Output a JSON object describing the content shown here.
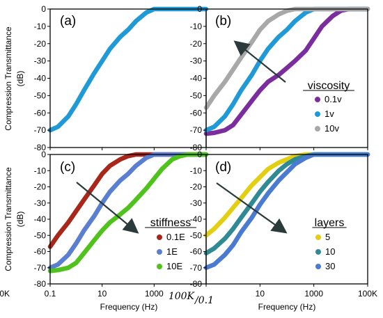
{
  "figure": {
    "y_axis_label_line1": "Compression Transmittance",
    "y_axis_label_line2": "(dB)",
    "x_axis_label": "Frequency (Hz)",
    "middle_x_tick_label": "100K",
    "middle_x_tick_suffix": "/0.1"
  },
  "chart_data": [
    {
      "type": "line",
      "panel": "(a)",
      "x_scale": "log",
      "xlim": [
        0.1,
        100000
      ],
      "ylim": [
        -80,
        0
      ],
      "xticks": [
        "0.1",
        "10",
        "1000",
        "100K"
      ],
      "yticks": [
        "0",
        "-10",
        "-20",
        "-30",
        "-40",
        "-50",
        "-60",
        "-70",
        "-80"
      ],
      "series": [
        {
          "color": "#1f9ad6",
          "x": [
            0.1,
            0.2,
            0.5,
            1,
            2,
            5,
            10,
            20,
            50,
            100,
            200,
            500,
            1000,
            2000,
            5000,
            10000
          ],
          "y": [
            -70,
            -68,
            -62,
            -55,
            -47,
            -37,
            -30,
            -23,
            -16,
            -12,
            -7,
            -2,
            0,
            0,
            0,
            0
          ]
        }
      ]
    },
    {
      "type": "line",
      "panel": "(b)",
      "x_scale": "log",
      "xlim": [
        0.1,
        100000
      ],
      "ylim": [
        -80,
        0
      ],
      "xticks": [
        "0.1",
        "10",
        "1000",
        "100K"
      ],
      "yticks": [
        "0",
        "-10",
        "-20",
        "-30",
        "-40",
        "-50",
        "-60",
        "-70",
        "-80"
      ],
      "legend": {
        "title": "viscosity",
        "placement": "right"
      },
      "series": [
        {
          "name": "0.1v",
          "color": "#7b2d9e",
          "x": [
            0.1,
            0.2,
            0.5,
            1,
            2,
            5,
            10,
            20,
            50,
            100,
            200,
            500,
            1000,
            2000,
            5000,
            10000,
            20000,
            50000
          ],
          "y": [
            -72,
            -71.5,
            -70,
            -67,
            -61,
            -53,
            -47,
            -42,
            -38,
            -34,
            -30,
            -24,
            -17,
            -10,
            -4,
            -1,
            0,
            0
          ]
        },
        {
          "name": "1v",
          "color": "#1f9ad6",
          "x": [
            0.1,
            0.2,
            0.5,
            1,
            2,
            5,
            10,
            20,
            50,
            100,
            200,
            500,
            1000,
            2000,
            5000,
            10000,
            20000
          ],
          "y": [
            -70,
            -68,
            -62,
            -55,
            -47,
            -38,
            -30,
            -23,
            -16,
            -12,
            -7,
            -2,
            0,
            0,
            0,
            0,
            0
          ]
        },
        {
          "name": "10v",
          "color": "#a8a8a8",
          "x": [
            0.1,
            0.2,
            0.5,
            1,
            2,
            5,
            10,
            20,
            50,
            100,
            200,
            500,
            1000,
            2000
          ],
          "y": [
            -57,
            -50,
            -42,
            -35,
            -28,
            -19,
            -12,
            -7,
            -3,
            -1,
            0,
            0,
            0,
            0
          ]
        }
      ]
    },
    {
      "type": "line",
      "panel": "(c)",
      "x_scale": "log",
      "xlim": [
        0.1,
        100000
      ],
      "ylim": [
        -80,
        0
      ],
      "xticks": [
        "0.1",
        "10",
        "1000",
        "100K"
      ],
      "yticks": [
        "0",
        "-10",
        "-20",
        "-30",
        "-40",
        "-50",
        "-60",
        "-70",
        "-80"
      ],
      "legend": {
        "title": "stiffness",
        "placement": "right"
      },
      "series": [
        {
          "name": "0.1E",
          "color": "#a8261a",
          "x": [
            0.1,
            0.2,
            0.5,
            1,
            2,
            5,
            10,
            20,
            50,
            100,
            200,
            500,
            1000,
            2000
          ],
          "y": [
            -57,
            -50,
            -42,
            -35,
            -28,
            -19,
            -12,
            -7,
            -3,
            -1,
            0,
            0,
            0,
            0
          ]
        },
        {
          "name": "1E",
          "color": "#5b7fd0",
          "x": [
            0.1,
            0.2,
            0.5,
            1,
            2,
            5,
            10,
            20,
            50,
            100,
            200,
            500,
            1000,
            2000,
            5000,
            10000,
            20000
          ],
          "y": [
            -70,
            -68,
            -62,
            -55,
            -47,
            -38,
            -30,
            -23,
            -16,
            -12,
            -7,
            -2,
            0,
            0,
            0,
            0,
            0
          ]
        },
        {
          "name": "10E",
          "color": "#4fc21c",
          "x": [
            0.1,
            0.2,
            0.5,
            1,
            2,
            5,
            10,
            20,
            50,
            100,
            200,
            500,
            1000,
            2000,
            5000,
            10000,
            20000,
            50000
          ],
          "y": [
            -72,
            -71.5,
            -70,
            -67,
            -61,
            -53,
            -47,
            -42,
            -37,
            -33,
            -28,
            -21,
            -15,
            -9,
            -3,
            -1,
            0,
            0
          ]
        }
      ]
    },
    {
      "type": "line",
      "panel": "(d)",
      "x_scale": "log",
      "xlim": [
        0.1,
        100000
      ],
      "ylim": [
        -80,
        0
      ],
      "xticks": [
        "10",
        "1000",
        "100K"
      ],
      "yticks": [
        "0",
        "-10",
        "-20",
        "-30",
        "-40",
        "-50",
        "-60",
        "-70",
        "-80"
      ],
      "legend": {
        "title": "layers",
        "placement": "right"
      },
      "series": [
        {
          "name": "5",
          "color": "#e3cf12",
          "x": [
            0.1,
            0.2,
            0.5,
            1,
            2,
            5,
            10,
            20,
            50,
            100,
            200,
            500,
            1000,
            2000,
            5000
          ],
          "y": [
            -50,
            -46,
            -39,
            -33,
            -27,
            -19,
            -14,
            -9,
            -5,
            -3,
            -1,
            0,
            0,
            0,
            0
          ]
        },
        {
          "name": "10",
          "color": "#2f8a94",
          "x": [
            0.1,
            0.2,
            0.5,
            1,
            2,
            5,
            10,
            20,
            50,
            100,
            200,
            500,
            1000,
            2000,
            5000,
            10000
          ],
          "y": [
            -61,
            -58,
            -52,
            -46,
            -39,
            -30,
            -23,
            -17,
            -10,
            -6,
            -3,
            -1,
            0,
            0,
            0,
            0
          ]
        },
        {
          "name": "30",
          "color": "#4a7bd1",
          "x": [
            0.1,
            0.2,
            0.5,
            1,
            2,
            5,
            10,
            20,
            50,
            100,
            200,
            500,
            1000,
            2000,
            5000,
            10000,
            20000
          ],
          "y": [
            -70,
            -68,
            -62,
            -56,
            -48,
            -39,
            -31,
            -24,
            -16,
            -11,
            -6,
            -2,
            0,
            0,
            0,
            0,
            0
          ]
        }
      ]
    }
  ]
}
